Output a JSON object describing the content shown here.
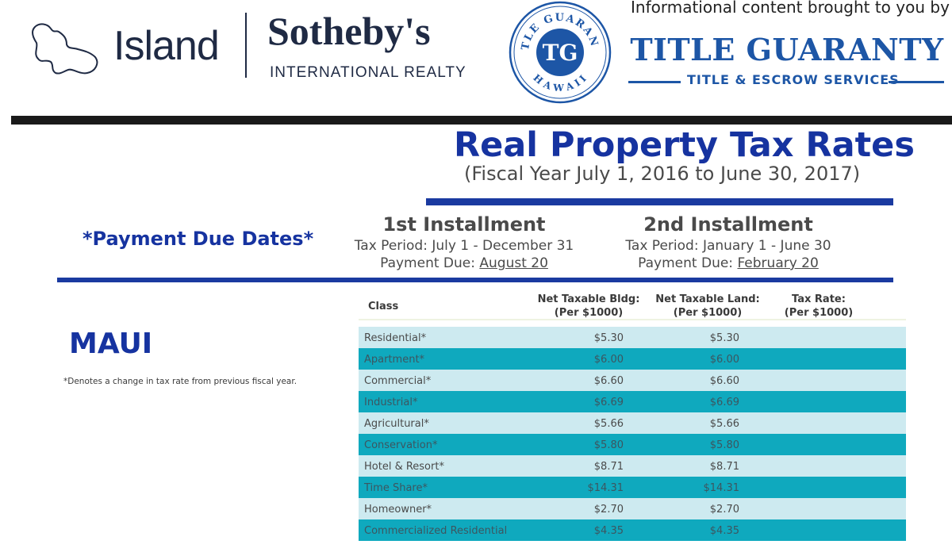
{
  "header": {
    "island_logo_icon": "maui-island-outline-icon",
    "island_word": "Island",
    "sothebys_word": "Sotheby's",
    "intl_word": "INTERNATIONAL REALTY",
    "info_text": "Informational content brought to you by",
    "seal_top_text": "TITLE GUARANTY",
    "seal_bottom_text": "HAWAII",
    "seal_initials": "TG",
    "tg_title": "TITLE GUARANTY",
    "tg_sub": "TITLE & ESCROW SERVICES"
  },
  "title": {
    "main": "Real Property Tax Rates",
    "fiscal": "(Fiscal Year July 1, 2016 to June 30, 2017)"
  },
  "payment": {
    "label": "*Payment Due Dates*",
    "first": {
      "head": "1st Installment",
      "period": "Tax Period: July 1 - December 31",
      "due_prefix": "Payment Due: ",
      "due_date": "August 20"
    },
    "second": {
      "head": "2nd Installment",
      "period": "Tax Period: January 1 - June 30",
      "due_prefix": "Payment Due: ",
      "due_date": "February 20"
    }
  },
  "region": {
    "name": "MAUI",
    "footnote": "*Denotes a change in tax rate from previous fiscal year."
  },
  "colors": {
    "brand_navy": "#1f2a44",
    "title_blue": "#1633a0",
    "tg_blue": "#1d56a6",
    "row_light": "#cdeaf0",
    "row_dark": "#0fa9be"
  },
  "table": {
    "headers": {
      "class": "Class",
      "bldg_1": "Net Taxable Bldg:",
      "bldg_2": "(Per $1000)",
      "land_1": "Net Taxable Land:",
      "land_2": "(Per $1000)",
      "rate_1": "Tax Rate:",
      "rate_2": "(Per $1000)"
    },
    "rows": [
      {
        "class": "Residential*",
        "bldg": "$5.30",
        "land": "$5.30"
      },
      {
        "class": "Apartment*",
        "bldg": "$6.00",
        "land": "$6.00"
      },
      {
        "class": "Commercial*",
        "bldg": "$6.60",
        "land": "$6.60"
      },
      {
        "class": "Industrial*",
        "bldg": "$6.69",
        "land": "$6.69"
      },
      {
        "class": "Agricultural*",
        "bldg": "$5.66",
        "land": "$5.66"
      },
      {
        "class": "Conservation*",
        "bldg": "$5.80",
        "land": "$5.80"
      },
      {
        "class": "Hotel & Resort*",
        "bldg": "$8.71",
        "land": "$8.71"
      },
      {
        "class": "Time Share*",
        "bldg": "$14.31",
        "land": "$14.31"
      },
      {
        "class": "Homeowner*",
        "bldg": "$2.70",
        "land": "$2.70"
      },
      {
        "class": "Commercialized Residential",
        "bldg": "$4.35",
        "land": "$4.35"
      }
    ]
  }
}
